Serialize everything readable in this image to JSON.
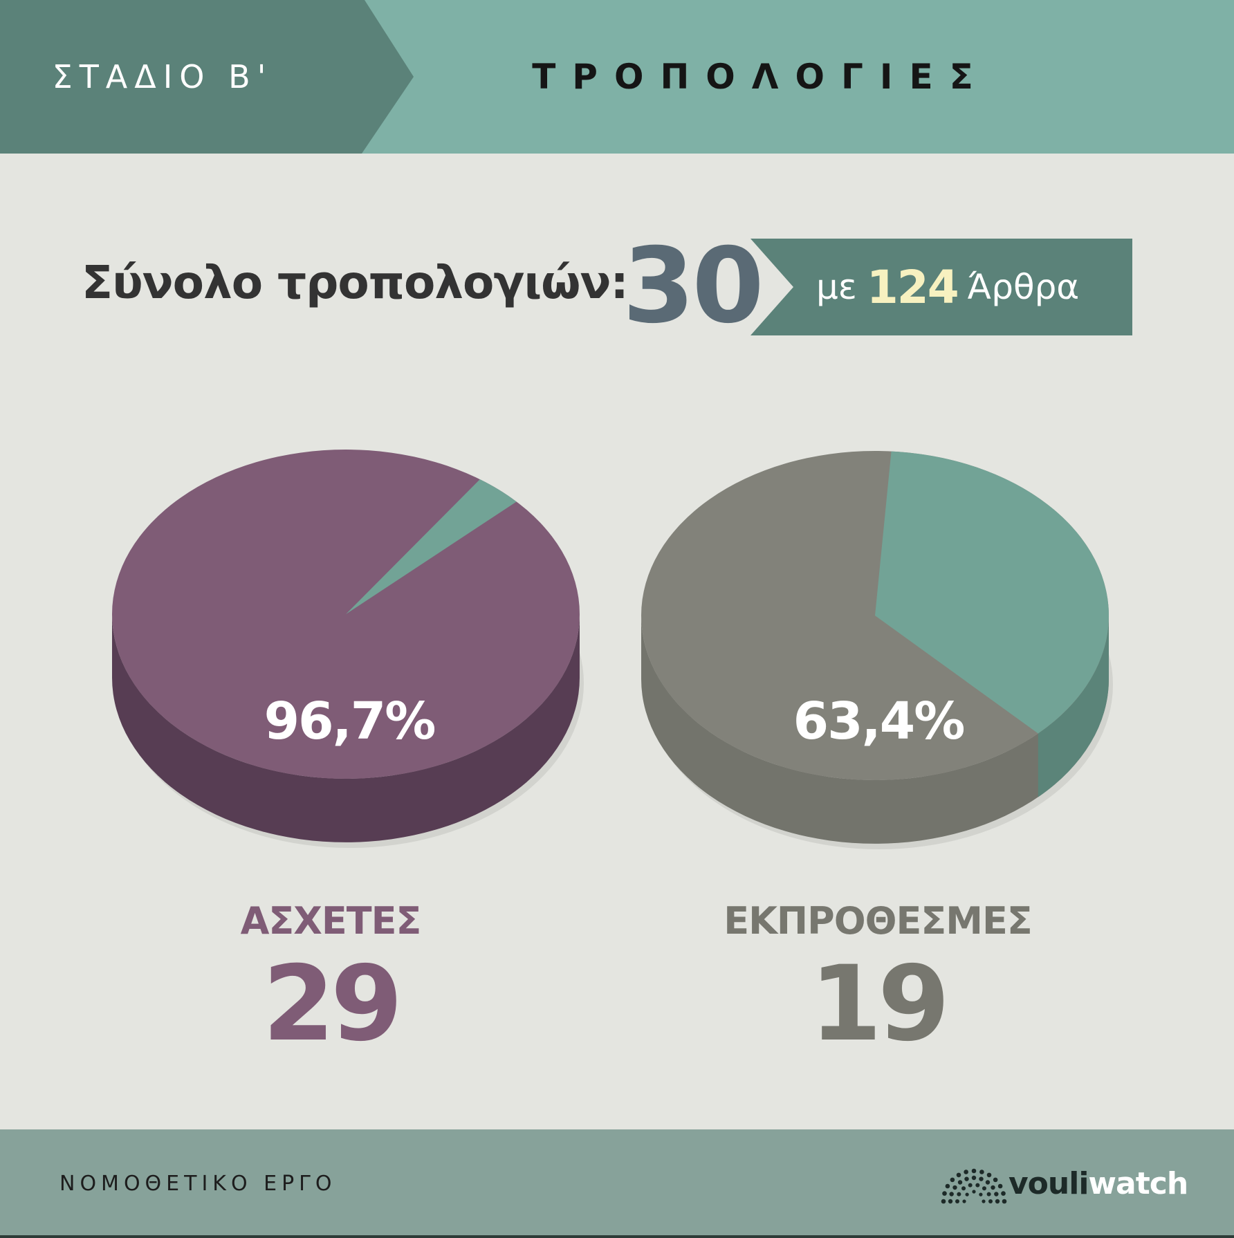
{
  "header": {
    "stage": "ΣΤΑΔΙΟ Β'",
    "title": "ΤΡΟΠΟΛΟΓΙΕΣ"
  },
  "summary": {
    "total_label": "Σύνολο τροπολογιών:",
    "total_value": "30",
    "articles_prefix": "με",
    "articles_value": "124",
    "articles_suffix": "Άρθρα"
  },
  "chart_data": [
    {
      "type": "pie",
      "slices": [
        {
          "value": 96.7,
          "color": "#7f5c76"
        },
        {
          "value": 3.3,
          "color": "#72a396"
        }
      ],
      "data_label": "96,7%",
      "category": "ΑΣΧΕΤΕΣ",
      "count": "29"
    },
    {
      "type": "pie",
      "slices": [
        {
          "value": 63.4,
          "color": "#82827a"
        },
        {
          "value": 36.6,
          "color": "#72a396"
        }
      ],
      "data_label": "63,4%",
      "category": "ΕΚΠΡΟΘΕΣΜΕΣ",
      "count": "19"
    }
  ],
  "colors": {
    "header_dark": "#5b8279",
    "header_light": "#7fb1a6",
    "purple": "#7f5c76",
    "purple_side": "#573d53",
    "grey": "#82827a",
    "grey_side": "#73746c",
    "teal": "#72a396",
    "teal_side": "#5b8479",
    "footer": "#87a29a"
  },
  "footer": {
    "label": "ΝΟΜΟΘΕΤΙΚΟ ΕΡΓΟ",
    "brand_part1": "vouli",
    "brand_part2": "watch",
    "brand_icon": "parliament-dots-icon"
  }
}
